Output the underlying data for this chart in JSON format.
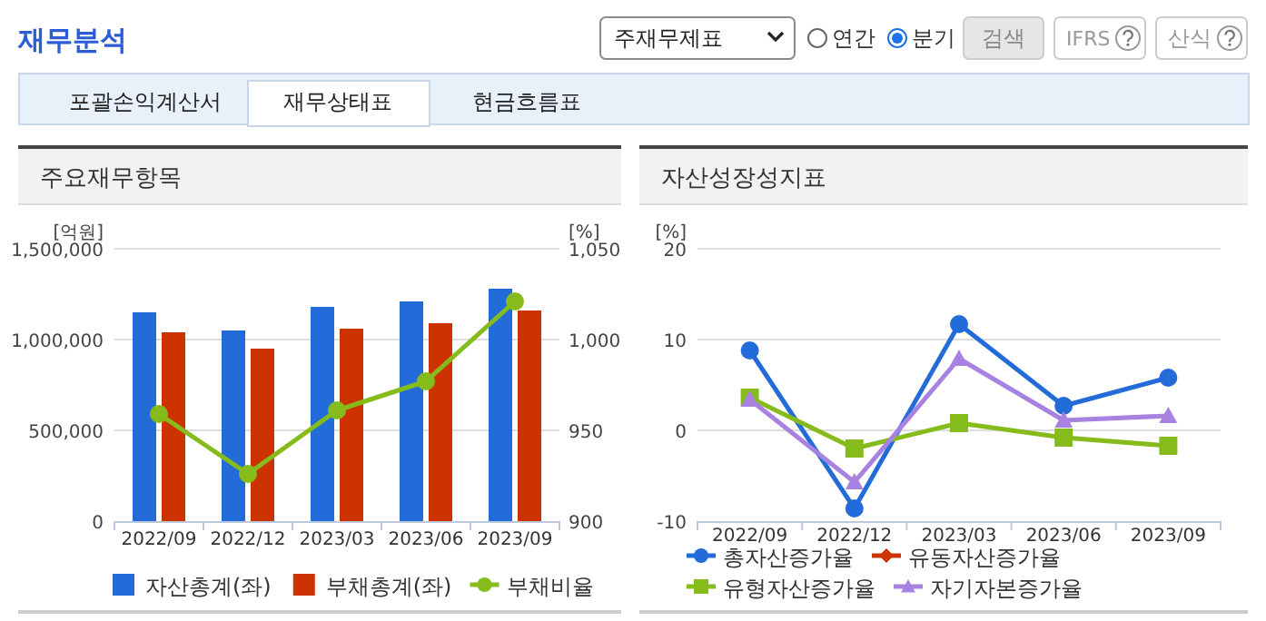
{
  "chart_data": [
    {
      "type": "bar",
      "title": "주요재무항목",
      "annotations": [
        "재무분석",
        "주재무제표",
        "연간",
        "분기",
        "검색",
        "IFRS",
        "산식",
        "포괄손익계산서",
        "재무상태표",
        "현금흐름표"
      ],
      "categories": [
        "2022/09",
        "2022/12",
        "2023/03",
        "2023/06",
        "2023/09"
      ],
      "ylabel": "[억원]",
      "y2label": "[%]",
      "ylim": [
        0,
        1500000
      ],
      "yticks": [
        0,
        {
          "value": 500000,
          "label": "500,000"
        },
        {
          "value": 1000000,
          "label": "1,000,000"
        },
        {
          "value": 1500000,
          "label": "1,500,000"
        }
      ],
      "y2lim": [
        900,
        1050
      ],
      "y2ticks": [
        900,
        950,
        {
          "value": 1000,
          "label": "1,000"
        },
        {
          "value": 1050,
          "label": "1,050"
        }
      ],
      "grid": "y",
      "legend": "bottom",
      "series": [
        {
          "name": "자산총계(좌)",
          "color": "#226bd8",
          "values": [
            1150000,
            1050000,
            1180000,
            1210000,
            1280000
          ]
        },
        {
          "name": "부채총계(좌)",
          "color": "#cc3300",
          "values": [
            1040000,
            950000,
            1060000,
            1090000,
            1160000
          ]
        },
        {
          "name": "부채비율",
          "type": "line",
          "axis": "y2",
          "marker": "circle",
          "color": "#85bc1b",
          "values": [
            959,
            926,
            961,
            977,
            1021
          ]
        }
      ]
    },
    {
      "type": "line",
      "title": "자산성장성지표",
      "categories": [
        "2022/09",
        "2022/12",
        "2023/03",
        "2023/06",
        "2023/09"
      ],
      "ylabel": "[%]",
      "ylim": [
        -10,
        20
      ],
      "yticks": [
        -10,
        0,
        10,
        20
      ],
      "grid": "y",
      "legend": "bottom",
      "series": [
        {
          "name": "총자산증가율",
          "marker": "circle",
          "color": "#226bd8",
          "values": [
            8.8,
            -8.6,
            11.7,
            2.7,
            5.8
          ]
        },
        {
          "name": "유동자산증가율",
          "marker": "diamond",
          "color": "#cc3300",
          "values": [
            null,
            null,
            null,
            null,
            null
          ]
        },
        {
          "name": "유형자산증가율",
          "marker": "square",
          "color": "#85bc1b",
          "values": [
            3.6,
            -2.0,
            0.8,
            -0.8,
            -1.7
          ]
        },
        {
          "name": "자기자본증가율",
          "marker": "triangle",
          "color": "#a882e0",
          "values": [
            3.4,
            -5.7,
            7.9,
            1.1,
            1.6
          ]
        }
      ]
    }
  ]
}
